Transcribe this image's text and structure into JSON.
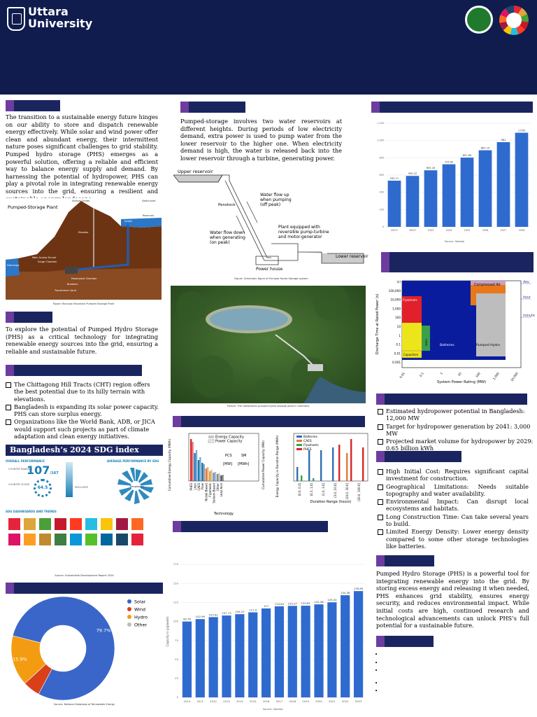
{
  "header": {
    "logo_line1": "Uttara",
    "logo_line2": "University"
  },
  "intro": {
    "text": "The transition to a sustainable energy future hinges on our ability to store and dispatch renewable energy effectively. While solar and wind power offer clean and abundant energy, their intermittent nature poses significant challenges to grid stability. Pumped hydro storage (PHS) emerges as a powerful solution, offering a reliable and efficient way to balance energy supply and demand. By harnessing the potential of hydropower, PHS can play a pivotal role in integrating renewable energy sources into the grid, ensuring a resilient and sustainable energy landscape."
  },
  "plant_figure": {
    "title": "Pumped-Storage Plant",
    "labels": [
      "Visitors Center",
      "Switchyard",
      "Reservoir",
      "Intake",
      "Elevator",
      "Main Access Tunnel",
      "Surge Chamber",
      "Discharge",
      "Powerplant Chamber",
      "Breakers",
      "Transformer Vault"
    ],
    "caption": "Figure: Raccoon Mountain Pumped Storage Plant"
  },
  "objective": {
    "text": "To explore the potential of Pumped Hydro Storage (PHS) as a critical technology for integrating renewable energy sources into the grid, ensuring a reliable and sustainable future."
  },
  "bangladesh_points": [
    "The Chittagong Hill Tracts (CHT) region offers the best potential due to its hilly terrain with elevations.",
    " Bangladesh is expanding its solar power capacity. PHS can store surplus energy.",
    "Organizations like the World Bank, ADB, or JICA would support such projects as part of climate adaptation and clean energy initiatives."
  ],
  "sdg": {
    "title": "Bangladesh’s 2024 SDG index",
    "overall_label": "OVERALL PERFORMANCE",
    "average_label": "AVERAGE PERFORMANCE BY SDG",
    "dashboards_label": "SDG DASHBOARDS AND TRENDS",
    "country_ranking_label": "COUNTRY RANKING",
    "country_score_label": "COUNTRY SCORE",
    "rank": "107",
    "rank_suffix": "/167",
    "score": "64.5",
    "spill_label": "SPILLOVER",
    "center_label": "Bangladesh",
    "source": "Source: Sustainable Development Report 2024",
    "tile_colors": [
      "#e5243b",
      "#dda63a",
      "#4c9f38",
      "#c5192d",
      "#ff3a21",
      "#26bde2",
      "#fcc30b",
      "#a21942",
      "#fd6925",
      "#dd1367",
      "#fd9d24",
      "#bf8b2e",
      "#3f7e44",
      "#0a97d9",
      "#56c02b",
      "#00689d",
      "#19486a",
      "#e5243b"
    ]
  },
  "mechanism": {
    "text": "Pumped-storage involves two water reservoirs at different heights. During periods of low electricity demand, extra power is used to pump water from the lower reservoir to the higher one. When electricity demand is high, the water is released back into the lower reservoir through a turbine, generating power.",
    "labels": {
      "upper": "Upper reservoir",
      "penstock": "Penstock",
      "flow_up": "Water flow up\nwhen pumping\n(off peak)",
      "flow_down": "Water flow down\nwhen generating\n(on peak)",
      "plant": "Plant equipped with\nreversible pump-turbine\nand motor-generator",
      "lower": "Lower reservoir",
      "power_house": "Power house"
    },
    "caption": "Figure: Schematic figure of Pumped Hydro Storage system"
  },
  "photo": {
    "caption": "Picture: The Geesthacht pumped hydro storage plant in Germany"
  },
  "storage_charts": {
    "left_legend": [
      "Energy Capacity",
      "Power Capacity"
    ],
    "left_ylabel": "Cumulative Energy Capacity (MWh)",
    "right_ylabel": "Cumulative Power Capacity (MW)",
    "xlabel": "Technology",
    "pcs_label": "PCS",
    "pcs_unit": "[MW]",
    "sm_label": "SM",
    "sm_unit": "[MWh]",
    "techs": [
      "PHES",
      "LiIon",
      "CAES",
      "Flow",
      "Nickel-Based",
      "Flywheels",
      "Sodium-Based",
      "Other",
      "Lead Acid"
    ],
    "mid_legend": [
      "Batteries",
      "CAES",
      "Flywheels",
      "PHES"
    ],
    "mid_ylabel": "Energy Capacity in Duration Range (MWh)",
    "mid_xlabel": "Duration Range (hours)",
    "ranges": [
      "(0.0, 0.3]",
      "(0.3, 1.0]",
      "(1.0, 3.0]",
      "(3.0, 10.0]",
      "(10.0, 30.0]",
      "(30.0, 100.0]"
    ]
  },
  "ragone": {
    "ylabel": "Discharge Time at Rated Power (s)",
    "xlabel": "System Power Rating (MW)",
    "regions": [
      "Compressed Air",
      "Flywheels",
      "Batteries",
      "Pumped Hydro",
      "Capacitors",
      "SMES"
    ],
    "right_ticks": [
      "day",
      "hour",
      "minute"
    ],
    "x_ticks": [
      "0.01",
      "0.1",
      "1",
      "10",
      "100",
      "1,000",
      "10,000"
    ],
    "y_ticks": [
      "(s)",
      "100,000",
      "10,000",
      "1,000",
      "100",
      "10",
      "1",
      "0.1",
      "0.01",
      "0.001"
    ]
  },
  "hydro_facts": [
    "Estimated hydropower potential in Bangladesh: 12,000 MW",
    "Target for hydropower generation by 2041: 3,000 MW",
    "Projected market volume for hydropower by 2029: 0.65 billion kWh"
  ],
  "challenges": [
    "High Initial Cost: Requires significant capital investment for construction.",
    "Geographical Limitations: Needs suitable topography and water availability.",
    "Environmental Impact: Can disrupt local ecosystems and habitats.",
    "Long Construction Time: Can take several years to build.",
    "Limited Energy Density: Lower energy density compared to some other storage technologies like batteries."
  ],
  "conclusion": {
    "text": "Pumped Hydro Storage (PHS) is a powerful tool for integrating renewable energy into the grid. By storing excess energy and releasing it when needed, PHS enhances grid stability, ensures energy security, and reduces environmental impact. While initial costs are high, continued research and technological advancements can unlock PHS’s full potential for a sustainable future."
  },
  "references": {
    "items": [
      "",
      "",
      "",
      "",
      ""
    ]
  },
  "colors": {
    "navy": "#0f1c4d",
    "section_bar": "#1a2560",
    "section_tab": "#6c3c9e",
    "bar_blue": "#2f6bcf"
  },
  "chart_data": [
    {
      "type": "pie",
      "labels": [
        "Solar",
        "Wind",
        "Hydro",
        "Other"
      ],
      "values": [
        79.7,
        5.4,
        15.9,
        0
      ],
      "data_labels": [
        "79.7%",
        "",
        "15.9%",
        ""
      ],
      "colors": [
        "#3a66c9",
        "#d9401a",
        "#f39c12",
        "#bdbdbd"
      ],
      "source": "Source: National Database of Renewable Energy"
    },
    {
      "type": "bar",
      "categories": [
        "2021*",
        "2022*",
        "2023",
        "2024",
        "2025",
        "2026",
        "2027",
        "2028"
      ],
      "values": [
        535.11,
        590.22,
        655.16,
        724.82,
        801.89,
        887.14,
        981,
        1090
      ],
      "data_labels": [
        "535.11",
        "590.22",
        "655.16",
        "724.82",
        "801.89",
        "887.14",
        "981",
        "1,090"
      ],
      "ylim": [
        0,
        1200
      ],
      "y_ticks": [
        "0",
        "200",
        "400",
        "600",
        "800",
        "1,000",
        "1,200"
      ],
      "source": "Source: Statista"
    },
    {
      "type": "bar",
      "categories": [
        "2010",
        "2011",
        "2012",
        "2013",
        "2014",
        "2015",
        "2016",
        "2017",
        "2018",
        "2019",
        "2020",
        "2021",
        "2022",
        "2023"
      ],
      "values": [
        99.76,
        102.99,
        105.61,
        107.73,
        109.47,
        111.9,
        117,
        119.84,
        120.37,
        120.61,
        122.38,
        125.04,
        134.38,
        139.85
      ],
      "data_labels": [
        "99.76",
        "102.99",
        "105.61",
        "107.73",
        "109.47",
        "111.9",
        "117",
        "119.84",
        "120.37",
        "120.61",
        "122.38",
        "125.04",
        "134.38",
        "139.85"
      ],
      "ylim": [
        0,
        175
      ],
      "y_ticks": [
        "0",
        "25",
        "50",
        "75",
        "100",
        "125",
        "150",
        "175"
      ],
      "ylabel": "Capacity in gigawatts",
      "source": "Source: Statista"
    }
  ]
}
